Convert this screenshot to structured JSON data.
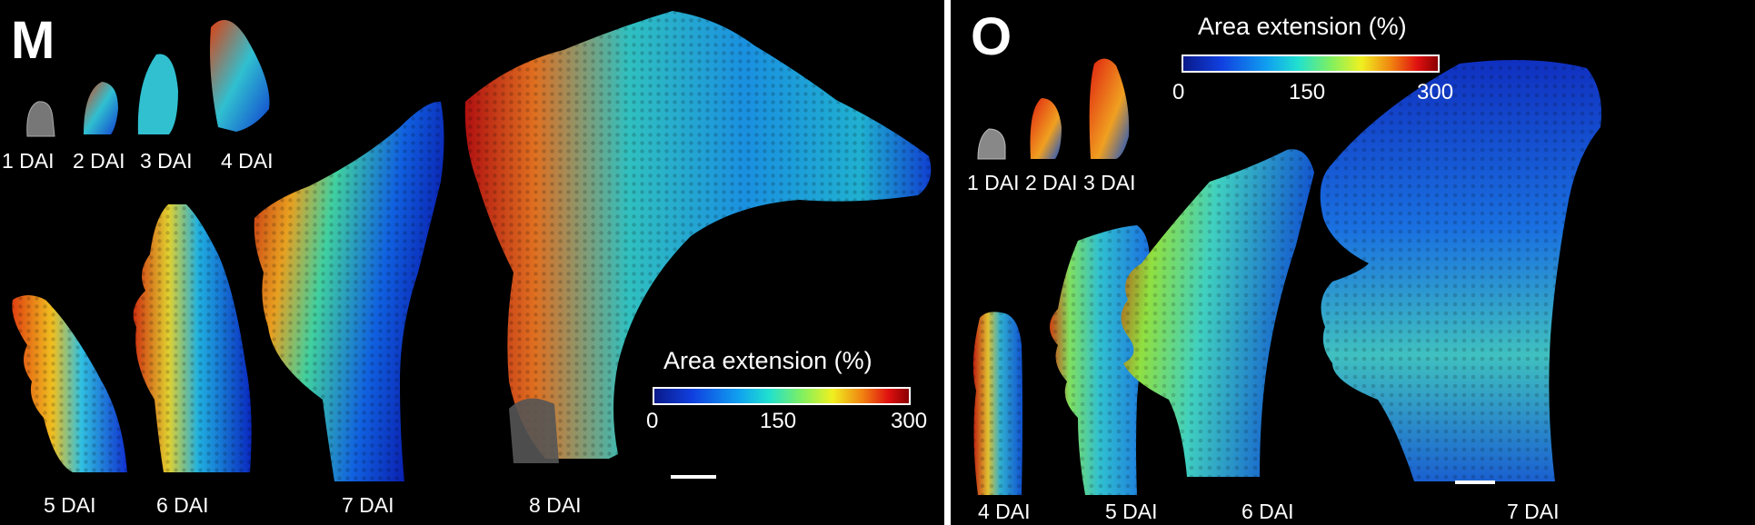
{
  "panel_m": {
    "letter": "M",
    "stage_labels": [
      "1 DAI",
      "2 DAI",
      "3 DAI",
      "4 DAI",
      "5 DAI",
      "6 DAI",
      "7 DAI",
      "8 DAI"
    ],
    "colorbar": {
      "title": "Area extension (%)",
      "min": "0",
      "mid": "150",
      "max": "300"
    }
  },
  "panel_o": {
    "letter": "O",
    "stage_labels": [
      "1 DAI",
      "2 DAI",
      "3 DAI",
      "4 DAI",
      "5 DAI",
      "6 DAI",
      "7 DAI"
    ],
    "colorbar": {
      "title": "Area extension (%)",
      "min": "0",
      "mid": "150",
      "max": "300"
    }
  },
  "colors": {
    "background": "#000000",
    "low": "#1040e0",
    "mid": "#20e0d0",
    "high": "#e01010",
    "divider": "#ffffff"
  }
}
